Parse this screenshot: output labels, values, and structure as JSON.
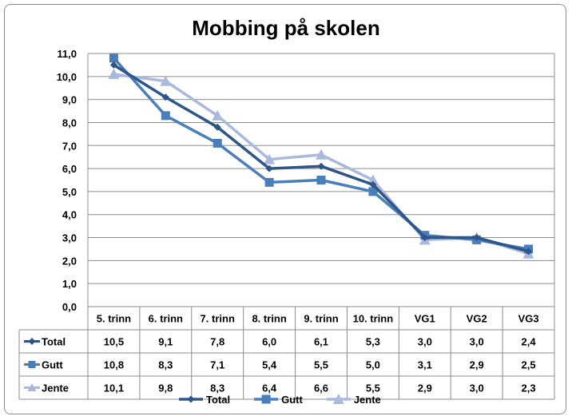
{
  "colors": {
    "total": "#2e5587",
    "gutt": "#4a7ebb",
    "jente": "#a9b9dc",
    "grid": "#8c8c8c",
    "border": "#8c8c8c"
  },
  "chart_data": {
    "type": "line",
    "title": "Mobbing på skolen",
    "xlabel": "",
    "ylabel": "",
    "categories": [
      "5. trinn",
      "6. trinn",
      "7. trinn",
      "8. trinn",
      "9. trinn",
      "10. trinn",
      "VG1",
      "VG2",
      "VG3"
    ],
    "ylim": [
      0,
      11
    ],
    "ytick_step": 1,
    "ytick_labels": [
      "0,0",
      "1,0",
      "2,0",
      "3,0",
      "4,0",
      "5,0",
      "6,0",
      "7,0",
      "8,0",
      "9,0",
      "10,0",
      "11,0"
    ],
    "grid": true,
    "legend_position": "bottom",
    "data_table": true,
    "series": [
      {
        "name": "Total",
        "marker": "diamond",
        "color": "#2e5587",
        "values": [
          10.5,
          9.1,
          7.8,
          6.0,
          6.1,
          5.3,
          3.0,
          3.0,
          2.4
        ],
        "labels": [
          "10,5",
          "9,1",
          "7,8",
          "6,0",
          "6,1",
          "5,3",
          "3,0",
          "3,0",
          "2,4"
        ]
      },
      {
        "name": "Gutt",
        "marker": "square",
        "color": "#4a7ebb",
        "values": [
          10.8,
          8.3,
          7.1,
          5.4,
          5.5,
          5.0,
          3.1,
          2.9,
          2.5
        ],
        "labels": [
          "10,8",
          "8,3",
          "7,1",
          "5,4",
          "5,5",
          "5,0",
          "3,1",
          "2,9",
          "2,5"
        ]
      },
      {
        "name": "Jente",
        "marker": "triangle",
        "color": "#a9b9dc",
        "values": [
          10.1,
          9.8,
          8.3,
          6.4,
          6.6,
          5.5,
          2.9,
          3.0,
          2.3
        ],
        "labels": [
          "10,1",
          "9,8",
          "8,3",
          "6,4",
          "6,6",
          "5,5",
          "2,9",
          "3,0",
          "2,3"
        ]
      }
    ]
  }
}
